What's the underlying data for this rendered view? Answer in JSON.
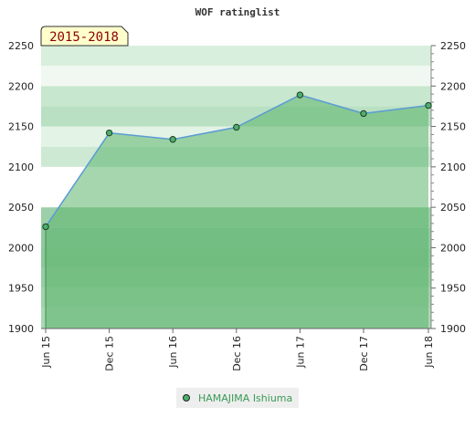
{
  "chart_data": {
    "type": "area",
    "title": "WOF ratinglist",
    "period_label": "2015-2018",
    "x": [
      "Jun 15",
      "Dec 15",
      "Jun 16",
      "Dec 16",
      "Jun 17",
      "Dec 17",
      "Jun 18"
    ],
    "series": [
      {
        "name": "HAMAJIMA Ishiuma",
        "values": [
          2026,
          2142,
          2134,
          2149,
          2189,
          2166,
          2176
        ]
      }
    ],
    "ylim": [
      1900,
      2250
    ],
    "yticks": [
      1900,
      1950,
      2000,
      2050,
      2100,
      2150,
      2200,
      2250
    ],
    "y_axis_both_sides": true,
    "grid": "horizontal bands",
    "legend_position": "bottom-center",
    "colors": {
      "line": "#5b9bd5",
      "area": "#5cb46c",
      "marker": "#4caf6a",
      "period_box": "#ffffcc",
      "legend_text": "#3a9a55"
    }
  }
}
